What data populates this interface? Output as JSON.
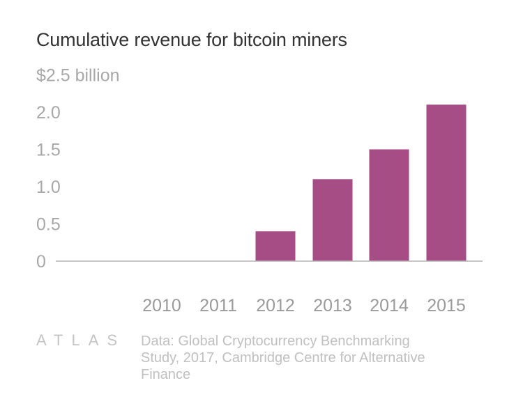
{
  "chart_data": {
    "type": "bar",
    "title": "Cumulative revenue for bitcoin miners",
    "categories": [
      "2010",
      "2011",
      "2012",
      "2013",
      "2014",
      "2015"
    ],
    "values": [
      0,
      0,
      0.4,
      1.1,
      1.5,
      2.1
    ],
    "ylim": [
      0,
      2.5
    ],
    "yticks": [
      {
        "value": 2.5,
        "label": "$2.5 billion"
      },
      {
        "value": 2.0,
        "label": "2.0"
      },
      {
        "value": 1.5,
        "label": "1.5"
      },
      {
        "value": 1.0,
        "label": "1.0"
      },
      {
        "value": 0.5,
        "label": "0.5"
      },
      {
        "value": 0,
        "label": "0"
      }
    ],
    "bar_color": "#a64d86",
    "grid": false
  },
  "footer": {
    "logo": "ATLAS",
    "source": "Data:  Global Cryptocurrency Benchmarking Study, 2017, Cambridge Centre for Alternative Finance"
  }
}
